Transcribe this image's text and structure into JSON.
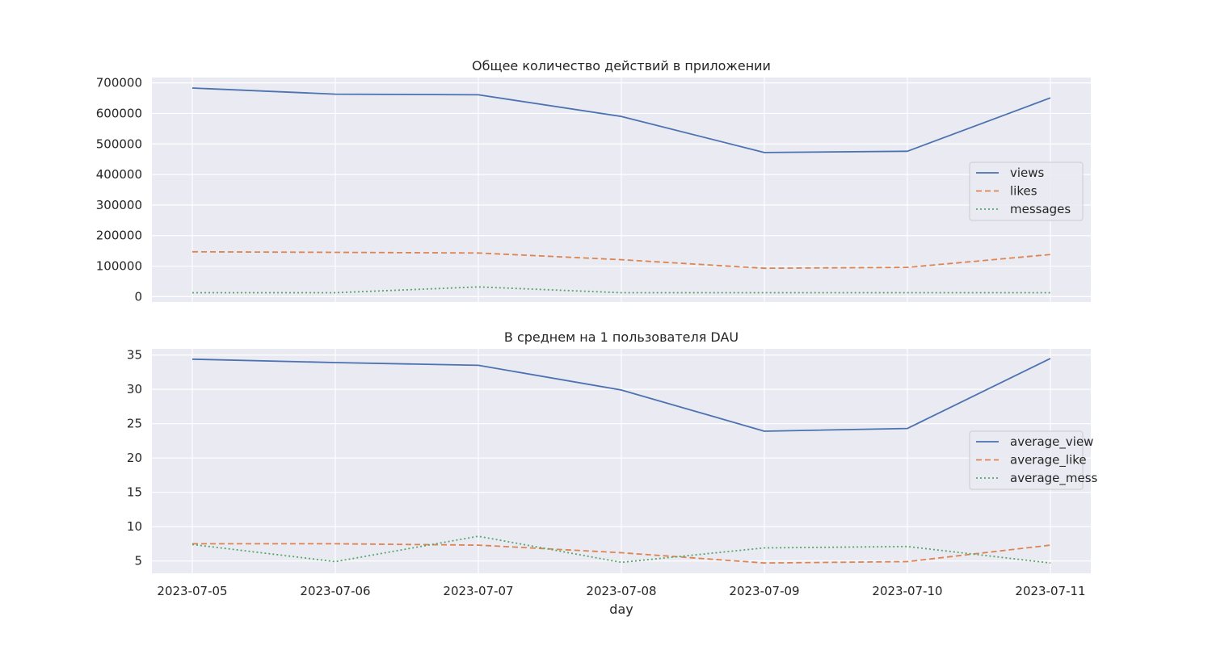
{
  "chart_data": [
    {
      "type": "line",
      "title": "Общее количество действий в приложении",
      "xlabel": "",
      "ylabel": "",
      "x": [
        "2023-07-05",
        "2023-07-06",
        "2023-07-07",
        "2023-07-08",
        "2023-07-09",
        "2023-07-10",
        "2023-07-11"
      ],
      "ylim": [
        -17500,
        717500
      ],
      "yticks": [
        0,
        100000,
        200000,
        300000,
        400000,
        500000,
        600000,
        700000
      ],
      "grid": true,
      "legend": "center-right",
      "series": [
        {
          "name": "views",
          "color": "#4c72b0",
          "dash": "solid",
          "values": [
            683000,
            663000,
            661000,
            590000,
            472000,
            476000,
            651000
          ]
        },
        {
          "name": "likes",
          "color": "#dd8452",
          "dash": "dashed",
          "values": [
            147000,
            145000,
            143000,
            121000,
            93000,
            96000,
            138000
          ]
        },
        {
          "name": "messages",
          "color": "#55a868",
          "dash": "dotted",
          "values": [
            13000,
            13000,
            32000,
            13000,
            13000,
            13000,
            13000
          ]
        }
      ]
    },
    {
      "type": "line",
      "title": "В среднем на 1 пользователя DAU",
      "xlabel": "day",
      "ylabel": "",
      "x": [
        "2023-07-05",
        "2023-07-06",
        "2023-07-07",
        "2023-07-08",
        "2023-07-09",
        "2023-07-10",
        "2023-07-11"
      ],
      "ylim": [
        3.2,
        35.9
      ],
      "yticks": [
        5,
        10,
        15,
        20,
        25,
        30,
        35
      ],
      "grid": true,
      "legend": "center-right",
      "series": [
        {
          "name": "average_view",
          "color": "#4c72b0",
          "dash": "solid",
          "values": [
            34.4,
            33.9,
            33.5,
            29.9,
            23.9,
            24.3,
            34.5
          ]
        },
        {
          "name": "average_like",
          "color": "#dd8452",
          "dash": "dashed",
          "values": [
            7.5,
            7.5,
            7.3,
            6.2,
            4.7,
            4.9,
            7.3
          ]
        },
        {
          "name": "average_mess",
          "color": "#55a868",
          "dash": "dotted",
          "values": [
            7.4,
            4.9,
            8.6,
            4.8,
            6.9,
            7.1,
            4.7
          ]
        }
      ]
    }
  ]
}
